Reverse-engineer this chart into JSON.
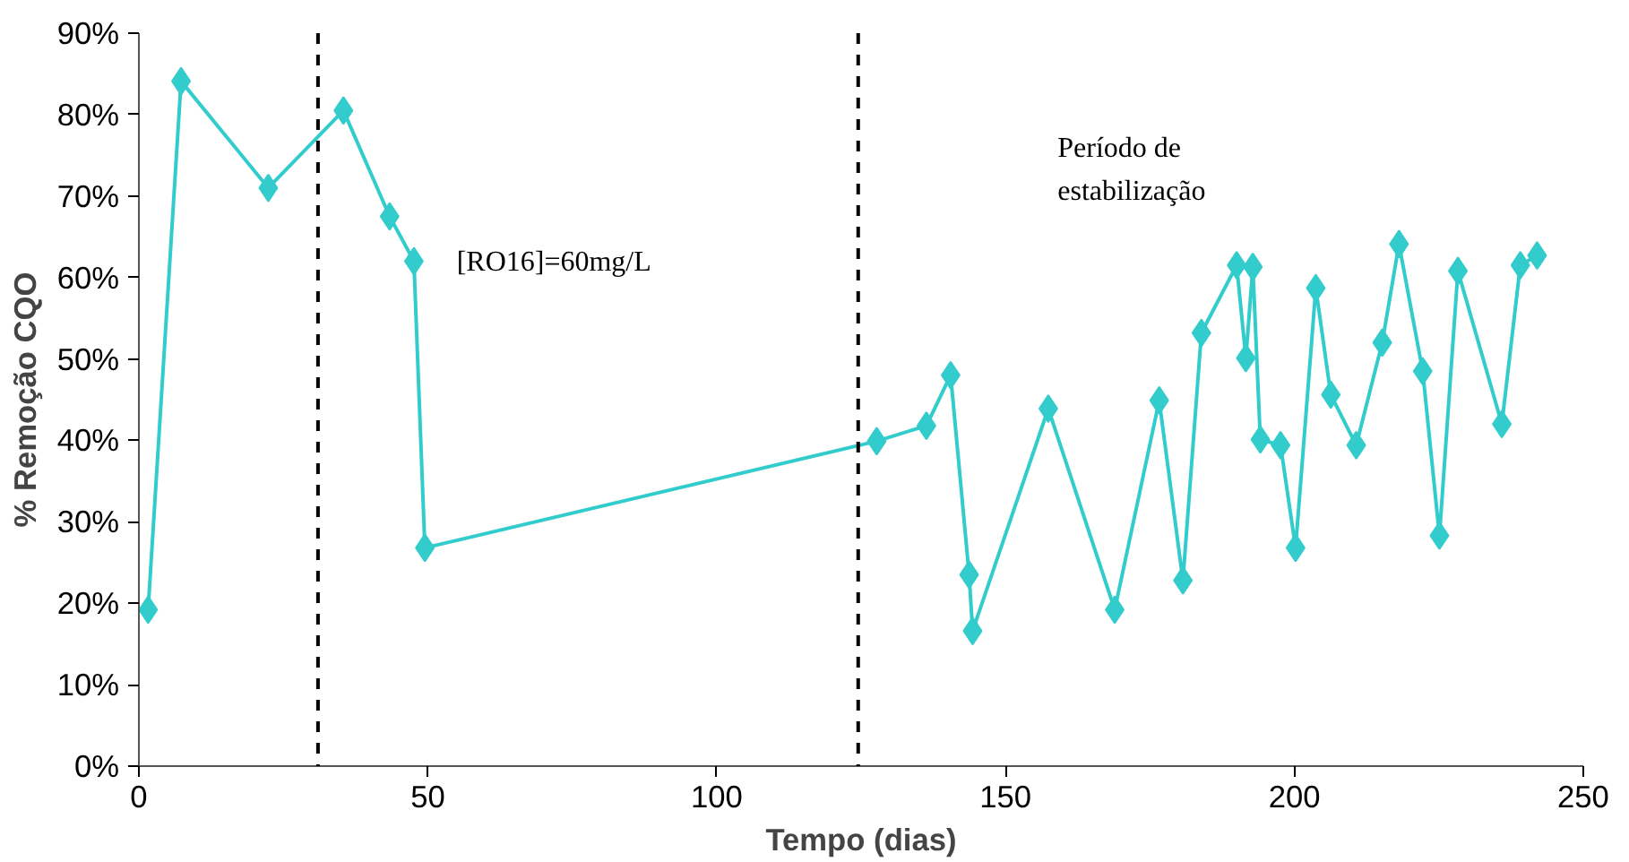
{
  "chart_data": {
    "type": "line",
    "xlabel": "Tempo (dias)",
    "ylabel": "% Remoção CQO",
    "x": [
      1.6,
      7.3,
      22.4,
      35.4,
      43.4,
      47.6,
      49.5,
      127.7,
      136.3,
      140.5,
      143.7,
      144.3,
      157.4,
      168.9,
      176.6,
      180.7,
      183.9,
      190.0,
      191.6,
      192.8,
      194.1,
      197.6,
      200.2,
      203.7,
      206.3,
      210.7,
      215.2,
      218.1,
      222.2,
      225.1,
      228.3,
      235.9,
      239.1,
      242.0
    ],
    "series": [
      {
        "color": "#33cccc",
        "values": [
          19.2,
          84.1,
          71.0,
          80.5,
          67.5,
          62.0,
          26.8,
          39.9,
          41.8,
          48.0,
          23.5,
          16.6,
          43.9,
          19.2,
          44.9,
          22.8,
          53.2,
          61.5,
          50.1,
          61.3,
          40.1,
          39.4,
          26.8,
          58.7,
          45.6,
          39.4,
          52.0,
          64.1,
          48.5,
          28.3,
          60.8,
          42.0,
          61.5,
          62.7
        ]
      }
    ],
    "xlim": [
      0,
      250
    ],
    "xticks": [
      0,
      50,
      100,
      150,
      200,
      250
    ],
    "ylim": [
      0,
      90
    ],
    "yticks": [
      {
        "value": 0,
        "label": "0%"
      },
      {
        "value": 10,
        "label": "10%"
      },
      {
        "value": 20,
        "label": "20%"
      },
      {
        "value": 30,
        "label": "30%"
      },
      {
        "value": 40,
        "label": "40%"
      },
      {
        "value": 50,
        "label": "50%"
      },
      {
        "value": 60,
        "label": "60%"
      },
      {
        "value": 70,
        "label": "70%"
      },
      {
        "value": 80,
        "label": "80%"
      },
      {
        "value": 90,
        "label": "90%"
      }
    ],
    "ref_lines": [
      {
        "axis": "x",
        "value": 31,
        "color": "#000000",
        "line_style": "dashed"
      },
      {
        "axis": "x",
        "value": 124.5,
        "color": "#000000",
        "line_style": "dashed"
      }
    ],
    "annotations": [
      "[RO16]=60mg/L",
      "Período de estabilização"
    ],
    "marker": "diamond",
    "line_style": "solid",
    "grid": false
  }
}
